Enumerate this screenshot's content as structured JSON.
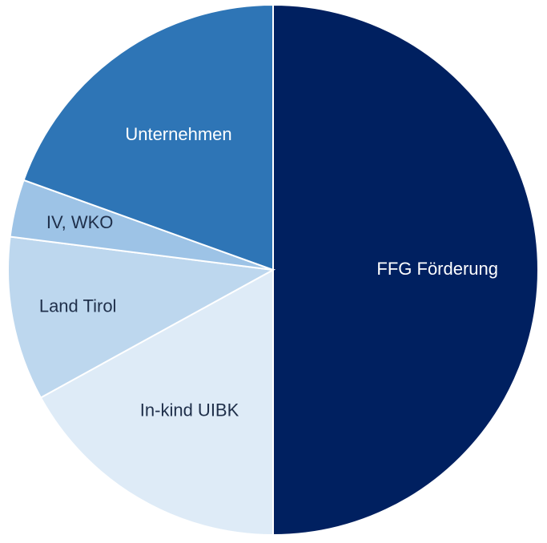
{
  "chart_data": {
    "type": "pie",
    "categories": [
      "FFG Förderung",
      "In-kind UIBK",
      "Land Tirol",
      "IV, WKO",
      "Unternehmen"
    ],
    "values": [
      50,
      17,
      10,
      3.5,
      19.5
    ],
    "colors": [
      "#002060",
      "#deebf7",
      "#bdd7ee",
      "#9dc3e6",
      "#2e75b6"
    ]
  }
}
